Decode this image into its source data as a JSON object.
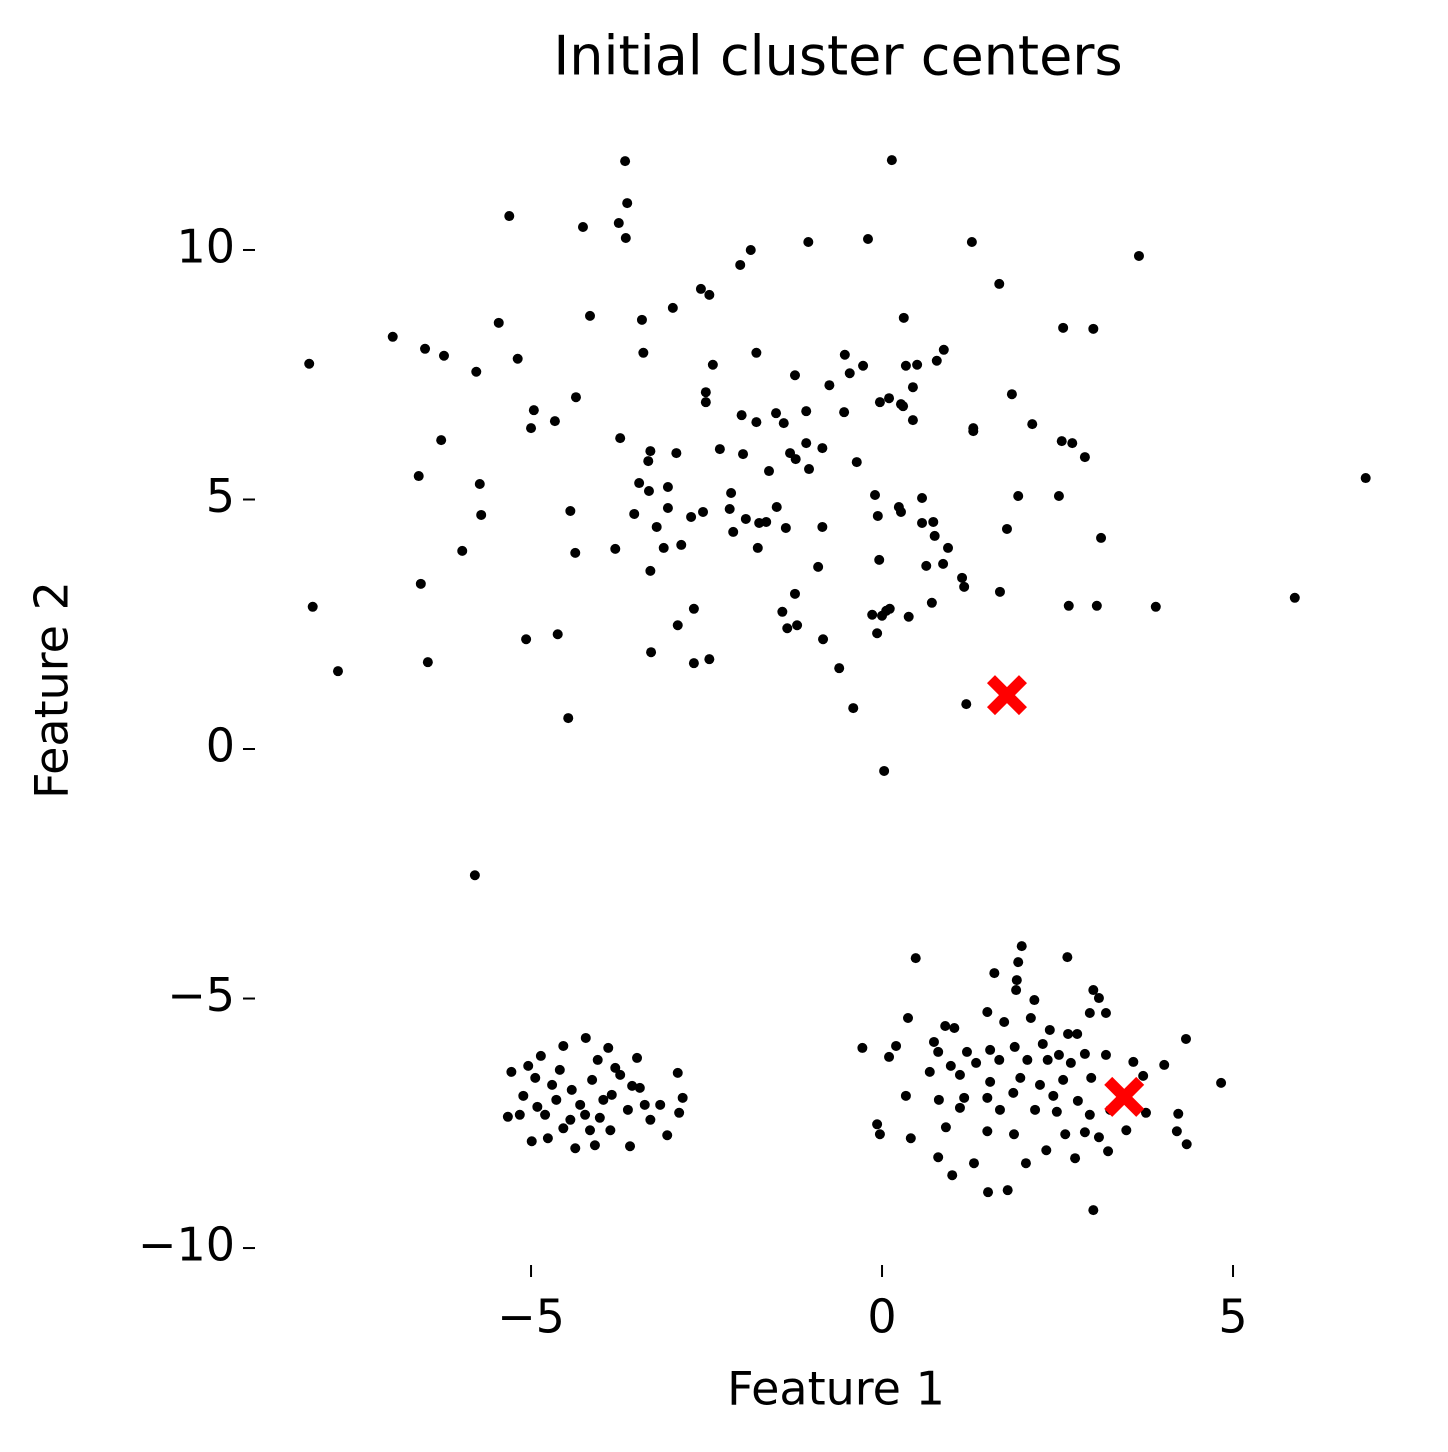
{
  "chart_data": {
    "type": "scatter",
    "title": "Initial cluster centers",
    "x_label": "Feature 1",
    "y_label": "Feature 2",
    "xlim": [
      -8.7,
      7.4
    ],
    "ylim": [
      -10.5,
      12.3
    ],
    "xticks": [
      {
        "value": -5,
        "label": "−5"
      },
      0,
      5
    ],
    "yticks": [
      {
        "value": -10,
        "label": "−10"
      },
      {
        "value": -5,
        "label": "−5"
      },
      0,
      5,
      10
    ],
    "grid": false,
    "series": [
      {
        "color": "#000000",
        "marker": "circle",
        "x": [
          -8.16,
          -8.11,
          -7.75,
          -6.97,
          -6.51,
          -6.24,
          -6.28,
          -6.6,
          -6.57,
          -6.47,
          -5.78,
          -5.73,
          -5.71,
          -5.98,
          -5.8,
          -5.46,
          -5.31,
          -5.19,
          -5.0,
          -4.96,
          -5.07,
          -4.66,
          -4.62,
          -4.44,
          -4.37,
          -4.47,
          -4.36,
          -4.26,
          -4.16,
          -3.75,
          -3.63,
          -3.65,
          -3.66,
          -3.73,
          -3.8,
          -3.42,
          -3.4,
          -3.33,
          -3.3,
          -3.46,
          -3.32,
          -3.53,
          -3.3,
          -3.29,
          -3.21,
          -3.11,
          -3.05,
          -3.05,
          -2.93,
          -2.98,
          -2.86,
          -2.91,
          -2.72,
          -2.68,
          -2.68,
          -2.58,
          -2.46,
          -2.51,
          -2.51,
          -2.55,
          -2.46,
          -2.41,
          -2.31,
          -2.02,
          -1.87,
          -2.0,
          -1.98,
          -2.15,
          -2.17,
          -2.12,
          -1.94,
          -1.79,
          -1.79,
          -1.75,
          -1.77,
          -1.65,
          -1.61,
          -1.51,
          -1.4,
          -1.5,
          -1.42,
          -1.35,
          -1.37,
          -1.24,
          -1.31,
          -1.23,
          -1.24,
          -1.21,
          -1.05,
          -1.08,
          -1.08,
          -1.04,
          -0.85,
          -0.91,
          -0.85,
          -0.84,
          -0.75,
          -0.61,
          -0.53,
          -0.54,
          -0.46,
          -0.36,
          -0.41,
          -0.27,
          -0.2,
          -0.14,
          -0.1,
          -0.06,
          -0.04,
          -0.07,
          -0.03,
          0.06,
          0.0,
          0.03,
          0.1,
          0.14,
          0.11,
          0.27,
          0.3,
          0.24,
          0.27,
          0.31,
          0.34,
          0.38,
          0.44,
          0.44,
          0.5,
          0.57,
          0.57,
          0.63,
          0.71,
          0.73,
          0.75,
          0.78,
          0.88,
          0.87,
          0.94,
          1.14,
          1.17,
          1.2,
          1.28,
          1.3,
          1.3,
          1.67,
          1.68,
          1.78,
          1.85,
          1.94,
          2.14,
          2.52,
          2.58,
          2.56,
          2.71,
          2.66,
          2.89,
          3.01,
          3.06,
          3.12,
          3.66,
          3.9,
          5.88,
          6.89,
          -5.28,
          -5.04,
          -4.86,
          -4.54,
          -4.22,
          -3.9,
          -3.49,
          -2.91,
          -2.84,
          -2.89,
          -3.06,
          -3.59,
          -4.09,
          -4.37,
          -4.76,
          -4.99,
          -5.33,
          -5.11,
          -4.91,
          -4.7,
          -4.59,
          -4.42,
          -4.3,
          -4.13,
          -4.02,
          -3.85,
          -3.73,
          -3.62,
          -3.45,
          -3.3,
          -3.16,
          -4.44,
          -4.16,
          -3.87,
          -4.8,
          -4.64,
          -4.05,
          -3.8,
          -3.56,
          -4.23,
          -4.54,
          -3.97,
          -3.38,
          -5.16,
          -4.94,
          1.99,
          1.94,
          0.48,
          2.64,
          1.92,
          1.6,
          1.91,
          3.01,
          3.09,
          2.17,
          0.37,
          1.5,
          2.96,
          3.19,
          0.9,
          1.03,
          1.74,
          2.12,
          2.39,
          2.65,
          2.78,
          4.33,
          0.2,
          -0.28,
          0.74,
          0.8,
          1.21,
          1.54,
          1.89,
          2.29,
          2.52,
          2.89,
          3.19,
          3.58,
          0.1,
          0.98,
          1.34,
          1.67,
          2.07,
          2.36,
          2.69,
          4.02,
          3.72,
          4.83,
          0.68,
          1.11,
          1.54,
          1.97,
          2.25,
          2.58,
          2.98,
          1.87,
          0.34,
          0.81,
          1.17,
          1.5,
          2.44,
          2.79,
          3.25,
          3.76,
          1.11,
          1.68,
          2.18,
          2.49,
          2.96,
          4.22,
          3.48,
          -0.07,
          0.41,
          0.91,
          1.5,
          1.88,
          2.61,
          2.89,
          3.09,
          4.2,
          -0.03,
          4.34,
          0.8,
          2.34,
          2.75,
          3.22,
          2.05,
          1.31,
          1.0,
          1.51,
          1.79,
          3.01
        ],
        "y": [
          7.72,
          2.85,
          1.56,
          8.26,
          8.02,
          7.88,
          6.19,
          5.47,
          3.31,
          1.74,
          7.56,
          5.31,
          4.69,
          3.97,
          -2.53,
          8.54,
          10.68,
          7.82,
          6.43,
          6.79,
          2.2,
          6.57,
          2.3,
          4.77,
          3.93,
          0.62,
          7.05,
          10.46,
          8.68,
          10.54,
          10.94,
          10.24,
          11.78,
          6.23,
          4.01,
          8.6,
          7.94,
          5.77,
          5.97,
          5.33,
          5.17,
          4.71,
          3.57,
          1.94,
          4.45,
          4.03,
          5.25,
          4.83,
          5.93,
          8.84,
          4.09,
          2.48,
          4.65,
          2.81,
          1.72,
          9.22,
          9.1,
          7.15,
          6.95,
          4.75,
          1.8,
          7.7,
          6.01,
          9.7,
          10.0,
          6.69,
          5.91,
          5.13,
          4.81,
          4.35,
          4.61,
          7.94,
          6.55,
          4.53,
          4.03,
          4.55,
          5.57,
          6.73,
          6.53,
          4.85,
          2.75,
          2.42,
          4.43,
          7.49,
          5.93,
          5.81,
          3.11,
          2.48,
          10.16,
          6.77,
          6.13,
          5.61,
          6.03,
          3.65,
          4.45,
          2.2,
          7.29,
          1.62,
          7.9,
          6.75,
          7.53,
          5.75,
          0.82,
          7.68,
          10.22,
          2.69,
          5.09,
          4.67,
          3.79,
          2.32,
          6.95,
          2.77,
          2.67,
          -0.44,
          7.03,
          11.8,
          2.81,
          6.91,
          6.87,
          4.85,
          4.75,
          8.64,
          7.68,
          2.65,
          6.59,
          7.25,
          7.7,
          5.03,
          4.53,
          3.67,
          2.93,
          4.55,
          4.27,
          7.78,
          8.0,
          3.71,
          4.03,
          3.43,
          3.25,
          0.9,
          10.16,
          6.43,
          6.37,
          9.32,
          3.15,
          4.41,
          7.11,
          5.07,
          6.51,
          5.07,
          8.44,
          6.17,
          6.13,
          2.87,
          5.85,
          8.42,
          2.87,
          4.23,
          9.88,
          2.85,
          3.03,
          5.43,
          -6.47,
          -6.35,
          -6.15,
          -5.95,
          -5.79,
          -5.99,
          -6.19,
          -6.49,
          -6.99,
          -7.29,
          -7.74,
          -7.96,
          -7.94,
          -8.0,
          -7.8,
          -7.86,
          -7.37,
          -6.95,
          -7.17,
          -6.73,
          -6.43,
          -6.83,
          -7.13,
          -6.63,
          -7.39,
          -6.93,
          -6.53,
          -7.23,
          -6.79,
          -7.43,
          -7.13,
          -7.43,
          -7.64,
          -7.64,
          -7.33,
          -7.03,
          -6.23,
          -6.39,
          -6.75,
          -7.33,
          -7.6,
          -7.03,
          -7.13,
          -7.33,
          -6.59,
          -3.95,
          -4.27,
          -4.19,
          -4.17,
          -4.63,
          -4.49,
          -4.83,
          -4.83,
          -4.99,
          -5.03,
          -5.39,
          -5.27,
          -5.29,
          -5.29,
          -5.55,
          -5.59,
          -5.47,
          -5.39,
          -5.63,
          -5.71,
          -5.71,
          -5.81,
          -5.95,
          -5.99,
          -5.87,
          -6.07,
          -6.07,
          -6.03,
          -5.97,
          -5.91,
          -6.13,
          -6.11,
          -6.13,
          -6.27,
          -6.17,
          -6.35,
          -6.29,
          -6.23,
          -6.23,
          -6.23,
          -6.29,
          -6.33,
          -6.55,
          -6.69,
          -6.47,
          -6.53,
          -6.67,
          -6.59,
          -6.73,
          -6.63,
          -6.59,
          -6.89,
          -6.95,
          -7.03,
          -6.99,
          -6.99,
          -6.95,
          -7.05,
          -7.23,
          -7.29,
          -7.19,
          -7.23,
          -7.23,
          -7.27,
          -7.33,
          -7.31,
          -7.64,
          -7.52,
          -7.8,
          -7.58,
          -7.66,
          -7.72,
          -7.72,
          -7.68,
          -7.78,
          -7.66,
          -7.72,
          -7.92,
          -8.18,
          -8.04,
          -8.2,
          -8.06,
          -8.3,
          -8.3,
          -8.54,
          -8.88,
          -8.84,
          -9.24
        ]
      },
      {
        "color": "#ff0000",
        "marker": "x",
        "x": [
          1.78,
          3.45
        ],
        "y": [
          1.08,
          -6.97
        ]
      }
    ]
  }
}
